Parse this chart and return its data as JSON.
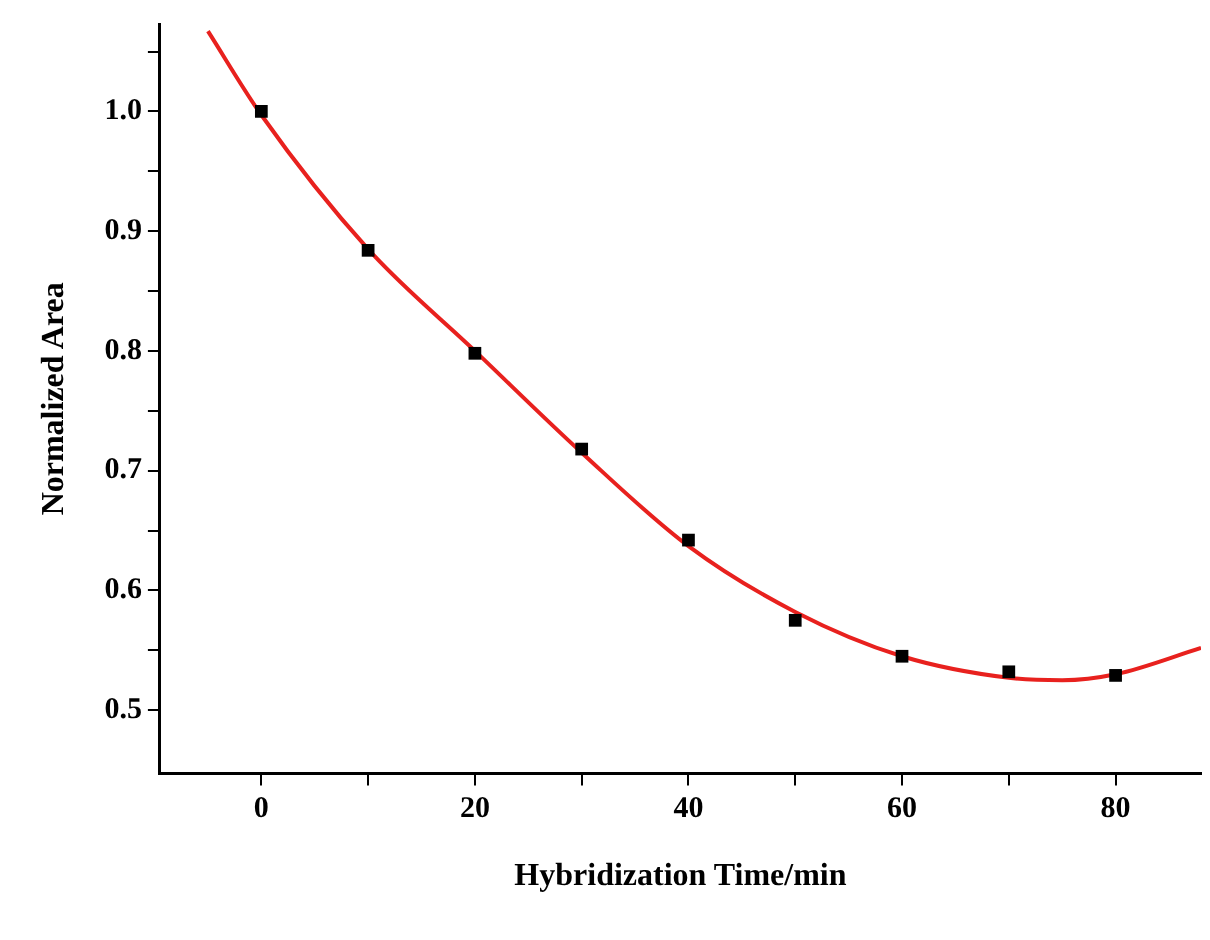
{
  "chart_data": {
    "type": "scatter",
    "xlabel": "Hybridization Time/min",
    "ylabel": "Normalized Area",
    "xlim": [
      -9.5,
      88
    ],
    "xticks": [
      0,
      {
        "value": 10,
        "label": null
      },
      20,
      {
        "value": 30,
        "label": null
      },
      40,
      {
        "value": 50,
        "label": null
      },
      60,
      {
        "value": 70,
        "label": null
      },
      80
    ],
    "ylim": [
      0.447,
      1.073
    ],
    "yticks": [
      {
        "value": 0.5,
        "label": "0.5"
      },
      {
        "value": 0.55,
        "label": null
      },
      {
        "value": 0.6,
        "label": "0.6"
      },
      {
        "value": 0.65,
        "label": null
      },
      {
        "value": 0.7,
        "label": "0.7"
      },
      {
        "value": 0.75,
        "label": null
      },
      {
        "value": 0.8,
        "label": "0.8"
      },
      {
        "value": 0.85,
        "label": null
      },
      {
        "value": 0.9,
        "label": "0.9"
      },
      {
        "value": 0.95,
        "label": null
      },
      {
        "value": 1.0,
        "label": "1.0"
      },
      {
        "value": 1.05,
        "label": null
      }
    ],
    "grid": false,
    "legend": false,
    "marker": "square",
    "series": [
      {
        "type": "scatter",
        "color": "#000000",
        "x": [
          0,
          10,
          20,
          30,
          40,
          50,
          60,
          70,
          80
        ],
        "values": [
          1.0,
          0.884,
          0.798,
          0.718,
          0.642,
          0.575,
          0.545,
          0.532,
          0.529
        ]
      },
      {
        "type": "line",
        "color": "#e8211e",
        "marker": "none",
        "line_style": "solid",
        "x": [
          -5,
          0,
          10,
          20,
          30,
          40,
          50,
          60,
          70,
          75,
          80,
          88
        ],
        "values": [
          1.067,
          0.997,
          0.885,
          0.8,
          0.715,
          0.637,
          0.582,
          0.545,
          0.527,
          0.525,
          0.53,
          0.552
        ]
      }
    ]
  }
}
